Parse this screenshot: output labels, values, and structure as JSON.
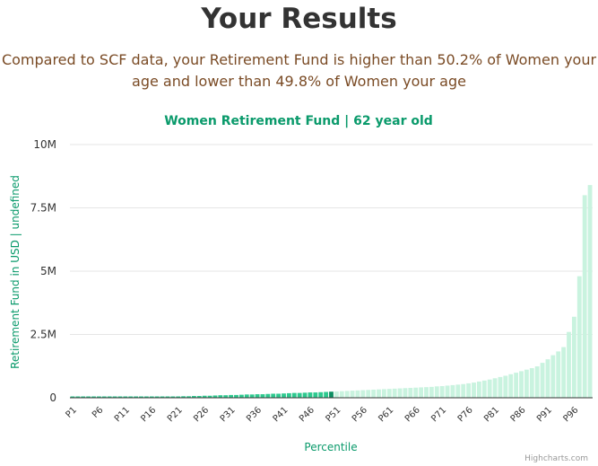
{
  "page": {
    "title": "Your Results",
    "subtitle": "Compared to SCF data, your Retirement Fund is higher than 50.2% of Women your age and lower than 49.8% of Women your age",
    "credits": "Highcharts.com"
  },
  "colors": {
    "accent": "#0a9a6b",
    "filled_bar": "#2ec98f",
    "user_bar": "#0f8f63",
    "light_bar": "#c9f3df",
    "title_text": "#333333",
    "subtitle_text": "#7a4b25"
  },
  "chart_data": {
    "type": "bar",
    "title": "Women Retirement Fund | 62 year old",
    "xlabel": "Percentile",
    "ylabel": "Retirement Fund in USD | undefined",
    "ylim": [
      0,
      10000000
    ],
    "y_ticks": [
      0,
      2500000,
      5000000,
      7500000,
      10000000
    ],
    "y_tick_labels": [
      "0",
      "2.5M",
      "5M",
      "7.5M",
      "10M"
    ],
    "x_tick_labels": [
      "P1",
      "P6",
      "P11",
      "P16",
      "P21",
      "P26",
      "P31",
      "P36",
      "P41",
      "P46",
      "P51",
      "P56",
      "P61",
      "P66",
      "P71",
      "P76",
      "P81",
      "P86",
      "P91",
      "P96"
    ],
    "highlight_percentile": 50,
    "grid": true,
    "categories": [
      "P1",
      "P2",
      "P3",
      "P4",
      "P5",
      "P6",
      "P7",
      "P8",
      "P9",
      "P10",
      "P11",
      "P12",
      "P13",
      "P14",
      "P15",
      "P16",
      "P17",
      "P18",
      "P19",
      "P20",
      "P21",
      "P22",
      "P23",
      "P24",
      "P25",
      "P26",
      "P27",
      "P28",
      "P29",
      "P30",
      "P31",
      "P32",
      "P33",
      "P34",
      "P35",
      "P36",
      "P37",
      "P38",
      "P39",
      "P40",
      "P41",
      "P42",
      "P43",
      "P44",
      "P45",
      "P46",
      "P47",
      "P48",
      "P49",
      "P50",
      "P51",
      "P52",
      "P53",
      "P54",
      "P55",
      "P56",
      "P57",
      "P58",
      "P59",
      "P60",
      "P61",
      "P62",
      "P63",
      "P64",
      "P65",
      "P66",
      "P67",
      "P68",
      "P69",
      "P70",
      "P71",
      "P72",
      "P73",
      "P74",
      "P75",
      "P76",
      "P77",
      "P78",
      "P79",
      "P80",
      "P81",
      "P82",
      "P83",
      "P84",
      "P85",
      "P86",
      "P87",
      "P88",
      "P89",
      "P90",
      "P91",
      "P92",
      "P93",
      "P94",
      "P95",
      "P96",
      "P97",
      "P98",
      "P99"
    ],
    "values": [
      0,
      0,
      0,
      0,
      0,
      10000,
      10000,
      10000,
      10000,
      10000,
      20000,
      20000,
      20000,
      30000,
      30000,
      30000,
      40000,
      40000,
      50000,
      50000,
      50000,
      60000,
      60000,
      70000,
      70000,
      80000,
      80000,
      90000,
      100000,
      100000,
      110000,
      110000,
      120000,
      130000,
      130000,
      140000,
      140000,
      150000,
      160000,
      160000,
      170000,
      180000,
      190000,
      190000,
      200000,
      210000,
      210000,
      220000,
      230000,
      240000,
      250000,
      260000,
      270000,
      280000,
      290000,
      300000,
      310000,
      320000,
      330000,
      340000,
      350000,
      360000,
      370000,
      380000,
      390000,
      400000,
      410000,
      420000,
      430000,
      450000,
      460000,
      480000,
      500000,
      520000,
      540000,
      570000,
      600000,
      640000,
      680000,
      720000,
      770000,
      820000,
      870000,
      930000,
      990000,
      1050000,
      1110000,
      1170000,
      1240000,
      1380000,
      1520000,
      1680000,
      1830000,
      2000000,
      2600000,
      3200000,
      4800000,
      8000000,
      8400000
    ]
  }
}
